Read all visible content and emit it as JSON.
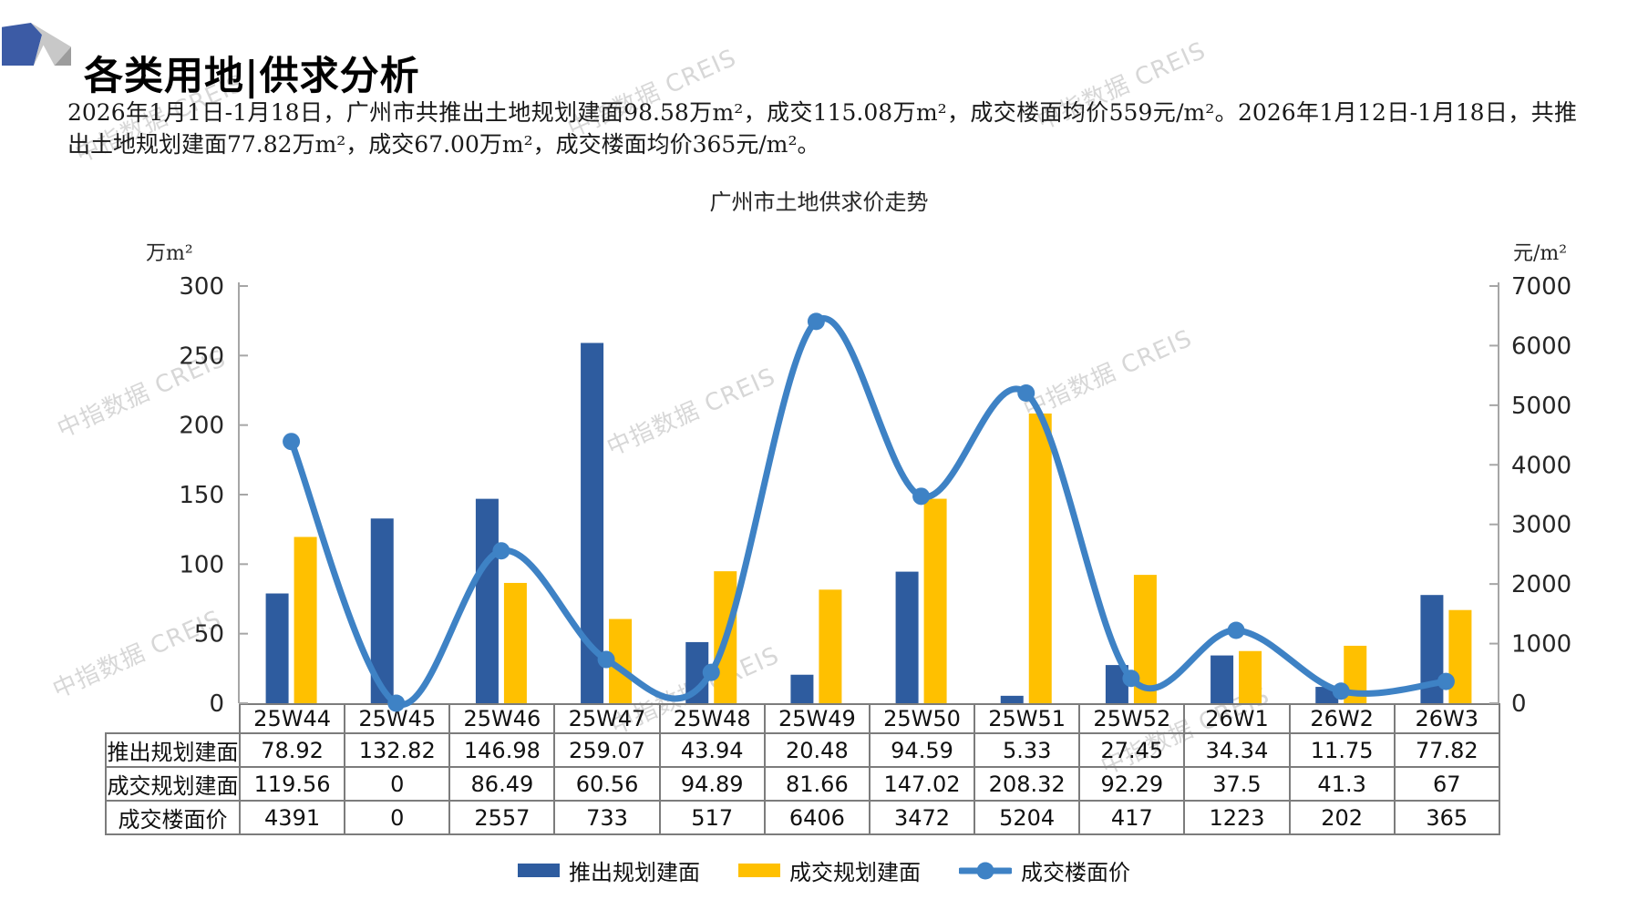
{
  "header": {
    "title": "各类用地|供求分析"
  },
  "summary": {
    "text": "2026年1月1日-1月18日，广州市共推出土地规划建面98.58万m²，成交115.08万m²，成交楼面均价559元/m²。2026年1月12日-1月18日，共推出土地规划建面77.82万m²，成交67.00万m²，成交楼面均价365元/m²。"
  },
  "watermark": {
    "text": "中指数据 CREIS"
  },
  "chart_data": {
    "type": "combo-bar-line",
    "title": "广州市土地供求价走势",
    "categories": [
      "25W44",
      "25W45",
      "25W46",
      "25W47",
      "25W48",
      "25W49",
      "25W50",
      "25W51",
      "25W52",
      "26W1",
      "26W2",
      "26W3"
    ],
    "left_axis": {
      "unit": "万m²",
      "min": 0,
      "max": 300,
      "step": 50,
      "ticks": [
        "300",
        "250",
        "200",
        "150",
        "100",
        "50",
        "0"
      ]
    },
    "right_axis": {
      "unit": "元/m²",
      "min": 0,
      "max": 7000,
      "step": 1000,
      "ticks": [
        "7000",
        "6000",
        "5000",
        "4000",
        "3000",
        "2000",
        "1000",
        "0"
      ]
    },
    "series": [
      {
        "name": "推出规划建面",
        "type": "bar",
        "axis": "left",
        "color": "#2E5C9F",
        "values": [
          78.92,
          132.82,
          146.98,
          259.07,
          43.94,
          20.48,
          94.59,
          5.33,
          27.45,
          34.34,
          11.75,
          77.82
        ]
      },
      {
        "name": "成交规划建面",
        "type": "bar",
        "axis": "left",
        "color": "#FFC000",
        "values": [
          119.56,
          0,
          86.49,
          60.56,
          94.89,
          81.66,
          147.02,
          208.32,
          92.29,
          37.5,
          41.3,
          67
        ]
      },
      {
        "name": "成交楼面价",
        "type": "line",
        "axis": "right",
        "color": "#3E82C5",
        "values": [
          4391,
          0,
          2557,
          733,
          517,
          6406,
          3472,
          5204,
          417,
          1223,
          202,
          365
        ]
      }
    ],
    "legend_position": "bottom",
    "grid": false
  },
  "table": {
    "rows": [
      {
        "label": "推出规划建面",
        "values": [
          "78.92",
          "132.82",
          "146.98",
          "259.07",
          "43.94",
          "20.48",
          "94.59",
          "5.33",
          "27.45",
          "34.34",
          "11.75",
          "77.82"
        ]
      },
      {
        "label": "成交规划建面",
        "values": [
          "119.56",
          "0",
          "86.49",
          "60.56",
          "94.89",
          "81.66",
          "147.02",
          "208.32",
          "92.29",
          "37.5",
          "41.3",
          "67"
        ]
      },
      {
        "label": "成交楼面价",
        "values": [
          "4391",
          "0",
          "2557",
          "733",
          "517",
          "6406",
          "3472",
          "5204",
          "417",
          "1223",
          "202",
          "365"
        ]
      }
    ]
  }
}
